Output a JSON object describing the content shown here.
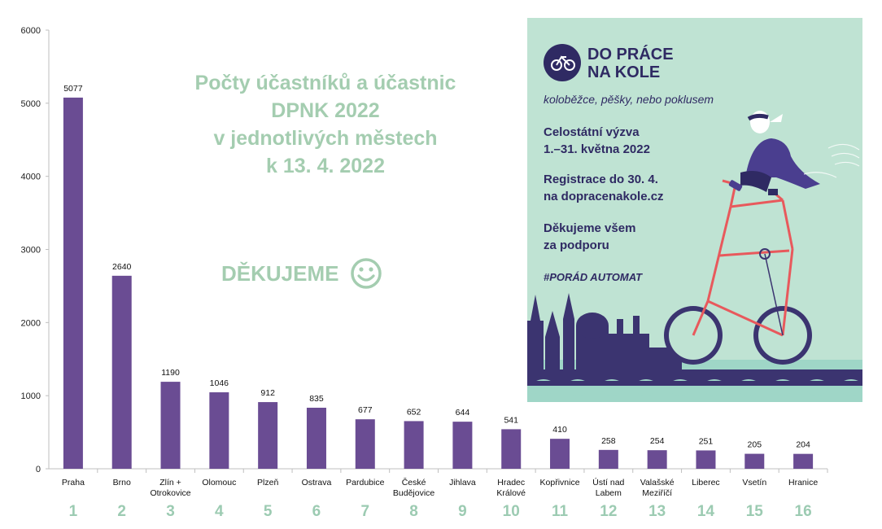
{
  "chart_data": {
    "type": "bar",
    "title_lines": [
      "Počty účastníků a účastnic",
      "DPNK 2022",
      "v jednotlivých městech",
      "k 13. 4. 2022"
    ],
    "subtitle": "DĚKUJEME",
    "categories": [
      "Praha",
      "Brno",
      "Zlín + Otrokovice",
      "Olomouc",
      "Plzeň",
      "Ostrava",
      "Pardubice",
      "České Budějovice",
      "Jihlava",
      "Hradec Králové",
      "Kopřivnice",
      "Ústí nad Labem",
      "Valašské Meziříčí",
      "Liberec",
      "Vsetín",
      "Hranice"
    ],
    "category_lines": [
      [
        "Praha"
      ],
      [
        "Brno"
      ],
      [
        "Zlín +",
        "Otrokovice"
      ],
      [
        "Olomouc"
      ],
      [
        "Plzeň"
      ],
      [
        "Ostrava"
      ],
      [
        "Pardubice"
      ],
      [
        "České",
        "Budějovice"
      ],
      [
        "Jihlava"
      ],
      [
        "Hradec",
        "Králové"
      ],
      [
        "Kopřivnice"
      ],
      [
        "Ústí nad",
        "Labem"
      ],
      [
        "Valašské",
        "Meziříčí"
      ],
      [
        "Liberec"
      ],
      [
        "Vsetín"
      ],
      [
        "Hranice"
      ]
    ],
    "ranks": [
      "1",
      "2",
      "3",
      "4",
      "5",
      "6",
      "7",
      "8",
      "9",
      "10",
      "11",
      "12",
      "13",
      "14",
      "15",
      "16"
    ],
    "values": [
      5077,
      2640,
      1190,
      1046,
      912,
      835,
      677,
      652,
      644,
      541,
      410,
      258,
      254,
      251,
      205,
      204
    ],
    "yticks": [
      0,
      1000,
      2000,
      3000,
      4000,
      5000,
      6000
    ],
    "ylim": [
      0,
      6000
    ],
    "xlabel": "",
    "ylabel": "",
    "bar_color": "#6a4c93",
    "title_color": "#a4cdb0",
    "rank_color": "#9ccbb2"
  },
  "poster": {
    "logo_line1": "DO PRÁCE",
    "logo_line2": "NA KOLE",
    "tagline": "koloběžce, pěšky, nebo poklusem",
    "block1_line1": "Celostátní výzva",
    "block1_line2": "1.–31. května 2022",
    "block2_line1": "Registrace do 30. 4.",
    "block2_line2": "na dopracenakole.cz",
    "block3_line1": "Děkujeme všem",
    "block3_line2": "za podporu",
    "hashtag": "#PORÁD AUTOMAT",
    "bg_color": "#bfe3d3",
    "ink_color": "#2f2a63",
    "bike_color": "#e8595c"
  }
}
